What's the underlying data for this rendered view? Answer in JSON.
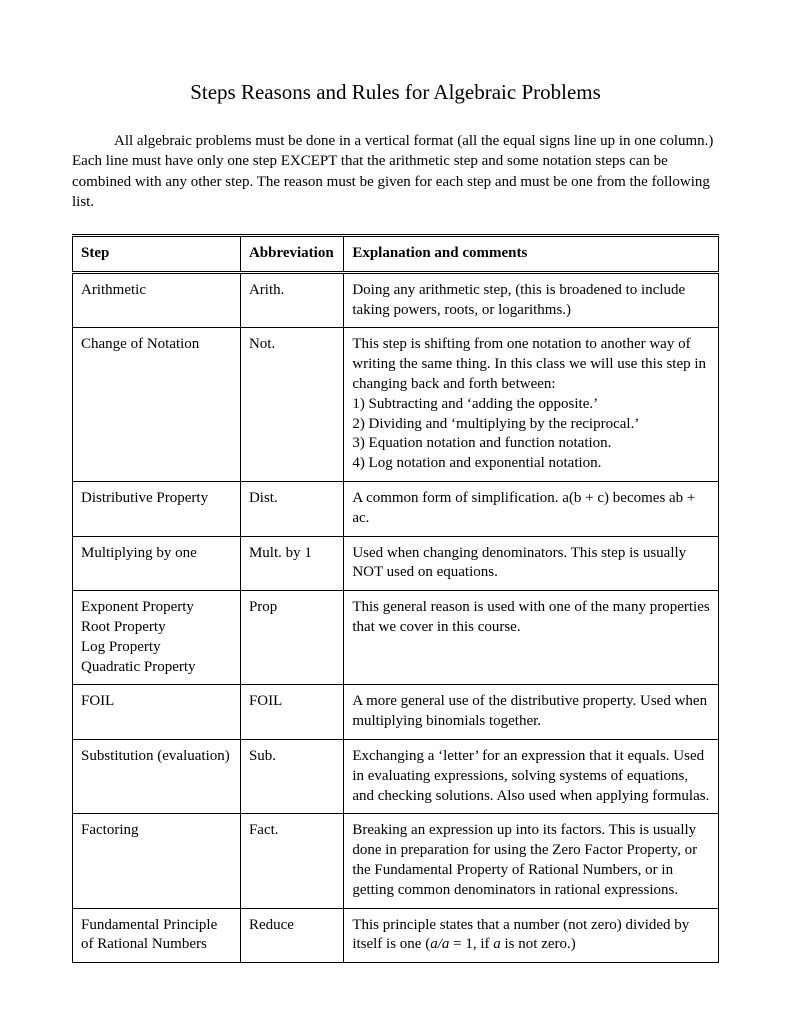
{
  "title": "Steps Reasons and Rules for Algebraic Problems",
  "intro": "All algebraic problems must be done in a vertical format (all the equal signs line up in one column.)  Each line must have only one step EXCEPT that the arithmetic step and some notation steps can be combined with any other step.  The reason must be given for each step and must be one from the following list.",
  "table": {
    "type": "table",
    "columns": [
      "Step",
      "Abbreviation",
      "Explanation and comments"
    ],
    "col_widths_pct": [
      26,
      16,
      58
    ],
    "border_color": "#000000",
    "background_color": "#ffffff",
    "font_family": "Times New Roman",
    "header_fontweight": "bold",
    "cell_fontsize": 15,
    "rows": [
      {
        "step": "Arithmetic",
        "abbr": "Arith.",
        "expl": "Doing any arithmetic step, (this is broadened to include taking powers, roots, or logarithms.)"
      },
      {
        "step": "Change of Notation",
        "abbr": "Not.",
        "expl_lines": [
          "This step is shifting from one notation to another way of writing the same thing.  In this class we will use this step in changing back and forth between:",
          "1)  Subtracting and ‘adding the opposite.’",
          "2)  Dividing and ‘multiplying by the reciprocal.’",
          "3)  Equation notation and function notation.",
          "4)  Log notation and  exponential notation."
        ]
      },
      {
        "step": "Distributive Property",
        "abbr": "Dist.",
        "expl": "A common form of simplification.  a(b + c) becomes  ab + ac."
      },
      {
        "step": "Multiplying by one",
        "abbr": "Mult. by 1",
        "expl": "Used when changing denominators.  This step is usually NOT used on equations."
      },
      {
        "step_lines": [
          "Exponent Property",
          "Root Property",
          "Log Property",
          "Quadratic Property"
        ],
        "abbr": "Prop",
        "expl": "This general reason is used with one of the many properties that we cover in this course."
      },
      {
        "step": "FOIL",
        "abbr": "FOIL",
        "expl": "A more general use of the distributive property.  Used when multiplying binomials together."
      },
      {
        "step": "Substitution (evaluation)",
        "abbr": "Sub.",
        "expl": "Exchanging a ‘letter’ for an expression that it equals.  Used in evaluating expressions, solving systems of equations, and checking solutions.  Also used when applying formulas."
      },
      {
        "step": "Factoring",
        "abbr": "Fact.",
        "expl": "Breaking an expression up into its factors.  This is usually done in preparation for using the Zero Factor Property, or the Fundamental Property of Rational Numbers, or in getting common denominators in rational expressions."
      },
      {
        "step": "Fundamental Principle of Rational Numbers",
        "abbr": "Reduce",
        "expl_html": "This principle states that a number (not zero) divided by itself is one (<span class=\"italic\">a/a</span> = 1, if <span class=\"italic\">a</span> is not zero.)"
      }
    ]
  }
}
